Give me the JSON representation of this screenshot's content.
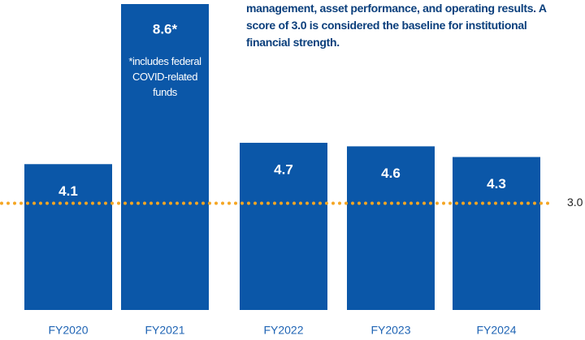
{
  "chart_data": {
    "type": "bar",
    "subtitle": "management, asset performance, and operating results. A score of 3.0 is considered the baseline for institutional financial strength.",
    "categories": [
      "FY2020",
      "FY2021",
      "FY2022",
      "FY2023",
      "FY2024"
    ],
    "values": [
      4.1,
      8.6,
      4.7,
      4.6,
      4.3
    ],
    "value_labels": [
      "4.1",
      "8.6*",
      "4.7",
      "4.6",
      "4.3"
    ],
    "color": "#0b57a8",
    "annotation": "*includes federal COVID-related funds",
    "reference": {
      "value": 3.0,
      "label": "3.0",
      "color": "#f5a623"
    }
  }
}
